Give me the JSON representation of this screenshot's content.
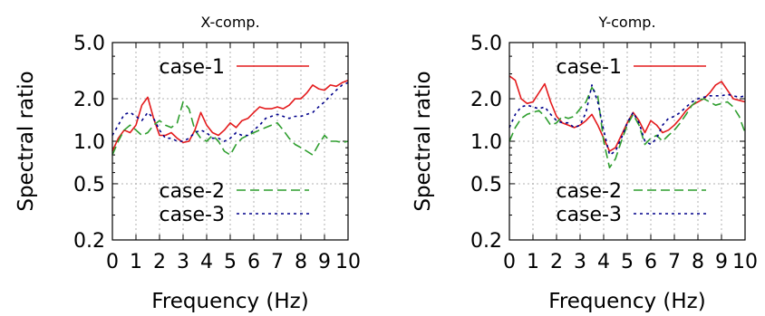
{
  "chart_data": [
    {
      "type": "line",
      "title": "X-comp.",
      "xlabel": "Frequency (Hz)",
      "ylabel": "Spectral ratio",
      "xlim": [
        0,
        10
      ],
      "ylim": [
        0.2,
        5.0
      ],
      "yscale": "log",
      "grid": true,
      "legend_placement": "top-right / bottom-right",
      "xticks": [
        0,
        1,
        2,
        3,
        4,
        5,
        6,
        7,
        8,
        9,
        10
      ],
      "xtick_labels": [
        "0",
        "1",
        "2",
        "3",
        "4",
        "5",
        "6",
        "7",
        "8",
        "9",
        "10"
      ],
      "yticks": [
        0.2,
        0.5,
        1.0,
        2.0,
        5.0
      ],
      "ytick_labels": [
        "0.2",
        "0.5",
        "1.0",
        "2.0",
        "5.0"
      ],
      "series": [
        {
          "name": "case-1",
          "color": "#e41a1c",
          "dash": "solid",
          "points": [
            [
              0,
              0.85
            ],
            [
              0.25,
              1.05
            ],
            [
              0.5,
              1.2
            ],
            [
              0.75,
              1.15
            ],
            [
              1.0,
              1.3
            ],
            [
              1.25,
              1.8
            ],
            [
              1.5,
              2.05
            ],
            [
              1.75,
              1.45
            ],
            [
              2.0,
              1.1
            ],
            [
              2.25,
              1.1
            ],
            [
              2.5,
              1.15
            ],
            [
              2.75,
              1.05
            ],
            [
              3.0,
              0.98
            ],
            [
              3.25,
              1.0
            ],
            [
              3.5,
              1.2
            ],
            [
              3.75,
              1.6
            ],
            [
              4.0,
              1.3
            ],
            [
              4.25,
              1.15
            ],
            [
              4.5,
              1.1
            ],
            [
              4.75,
              1.2
            ],
            [
              5.0,
              1.35
            ],
            [
              5.25,
              1.25
            ],
            [
              5.5,
              1.4
            ],
            [
              5.75,
              1.45
            ],
            [
              6.0,
              1.6
            ],
            [
              6.25,
              1.75
            ],
            [
              6.5,
              1.7
            ],
            [
              6.75,
              1.7
            ],
            [
              7.0,
              1.75
            ],
            [
              7.25,
              1.7
            ],
            [
              7.5,
              1.8
            ],
            [
              7.75,
              2.0
            ],
            [
              8.0,
              2.0
            ],
            [
              8.25,
              2.2
            ],
            [
              8.5,
              2.5
            ],
            [
              8.75,
              2.35
            ],
            [
              9.0,
              2.3
            ],
            [
              9.25,
              2.5
            ],
            [
              9.5,
              2.45
            ],
            [
              9.75,
              2.6
            ],
            [
              10.0,
              2.7
            ]
          ]
        },
        {
          "name": "case-2",
          "color": "#2e9e2e",
          "dash": "dashed",
          "points": [
            [
              0,
              0.8
            ],
            [
              0.25,
              1.0
            ],
            [
              0.5,
              1.2
            ],
            [
              0.75,
              1.3
            ],
            [
              1.0,
              1.2
            ],
            [
              1.25,
              1.1
            ],
            [
              1.5,
              1.15
            ],
            [
              1.75,
              1.3
            ],
            [
              2.0,
              1.4
            ],
            [
              2.25,
              1.3
            ],
            [
              2.5,
              1.25
            ],
            [
              2.75,
              1.35
            ],
            [
              3.0,
              1.9
            ],
            [
              3.25,
              1.7
            ],
            [
              3.5,
              1.2
            ],
            [
              3.75,
              1.05
            ],
            [
              4.0,
              1.0
            ],
            [
              4.25,
              1.1
            ],
            [
              4.5,
              1.0
            ],
            [
              4.75,
              0.85
            ],
            [
              5.0,
              0.8
            ],
            [
              5.25,
              0.95
            ],
            [
              5.5,
              1.05
            ],
            [
              5.75,
              1.1
            ],
            [
              6.0,
              1.15
            ],
            [
              6.25,
              1.2
            ],
            [
              6.5,
              1.25
            ],
            [
              6.75,
              1.3
            ],
            [
              7.0,
              1.35
            ],
            [
              7.25,
              1.2
            ],
            [
              7.5,
              1.05
            ],
            [
              7.75,
              0.95
            ],
            [
              8.0,
              0.9
            ],
            [
              8.25,
              0.85
            ],
            [
              8.5,
              0.8
            ],
            [
              8.75,
              0.95
            ],
            [
              9.0,
              1.1
            ],
            [
              9.25,
              1.0
            ],
            [
              9.5,
              1.0
            ],
            [
              9.75,
              0.98
            ],
            [
              10.0,
              1.0
            ]
          ]
        },
        {
          "name": "case-3",
          "color": "#00008b",
          "dash": "dotted",
          "points": [
            [
              0,
              1.1
            ],
            [
              0.25,
              1.3
            ],
            [
              0.5,
              1.55
            ],
            [
              0.75,
              1.6
            ],
            [
              1.0,
              1.5
            ],
            [
              1.25,
              1.4
            ],
            [
              1.5,
              1.6
            ],
            [
              1.75,
              1.45
            ],
            [
              2.0,
              1.2
            ],
            [
              2.25,
              1.05
            ],
            [
              2.5,
              1.05
            ],
            [
              2.75,
              1.0
            ],
            [
              3.0,
              1.0
            ],
            [
              3.25,
              1.05
            ],
            [
              3.5,
              1.15
            ],
            [
              3.75,
              1.2
            ],
            [
              4.0,
              1.15
            ],
            [
              4.25,
              1.05
            ],
            [
              4.5,
              1.05
            ],
            [
              4.75,
              1.0
            ],
            [
              5.0,
              1.05
            ],
            [
              5.25,
              1.15
            ],
            [
              5.5,
              1.1
            ],
            [
              5.75,
              1.1
            ],
            [
              6.0,
              1.2
            ],
            [
              6.25,
              1.3
            ],
            [
              6.5,
              1.45
            ],
            [
              6.75,
              1.5
            ],
            [
              7.0,
              1.55
            ],
            [
              7.25,
              1.5
            ],
            [
              7.5,
              1.45
            ],
            [
              7.75,
              1.5
            ],
            [
              8.0,
              1.5
            ],
            [
              8.25,
              1.55
            ],
            [
              8.5,
              1.6
            ],
            [
              8.75,
              1.75
            ],
            [
              9.0,
              1.9
            ],
            [
              9.25,
              2.1
            ],
            [
              9.5,
              2.3
            ],
            [
              9.75,
              2.5
            ],
            [
              10.0,
              2.6
            ]
          ]
        }
      ]
    },
    {
      "type": "line",
      "title": "Y-comp.",
      "xlabel": "Frequency (Hz)",
      "ylabel": "Spectral ratio",
      "xlim": [
        0,
        10
      ],
      "ylim": [
        0.2,
        5.0
      ],
      "yscale": "log",
      "grid": true,
      "legend_placement": "top-right / bottom-right",
      "xticks": [
        0,
        1,
        2,
        3,
        4,
        5,
        6,
        7,
        8,
        9,
        10
      ],
      "xtick_labels": [
        "0",
        "1",
        "2",
        "3",
        "4",
        "5",
        "6",
        "7",
        "8",
        "9",
        "10"
      ],
      "yticks": [
        0.2,
        0.5,
        1.0,
        2.0,
        5.0
      ],
      "ytick_labels": [
        "0.2",
        "0.5",
        "1.0",
        "2.0",
        "5.0"
      ],
      "series": [
        {
          "name": "case-1",
          "color": "#e41a1c",
          "dash": "solid",
          "points": [
            [
              0,
              2.9
            ],
            [
              0.25,
              2.7
            ],
            [
              0.5,
              2.0
            ],
            [
              0.75,
              1.85
            ],
            [
              1.0,
              1.9
            ],
            [
              1.25,
              2.2
            ],
            [
              1.5,
              2.55
            ],
            [
              1.75,
              1.9
            ],
            [
              2.0,
              1.5
            ],
            [
              2.25,
              1.35
            ],
            [
              2.5,
              1.3
            ],
            [
              2.75,
              1.25
            ],
            [
              3.0,
              1.3
            ],
            [
              3.25,
              1.4
            ],
            [
              3.5,
              1.55
            ],
            [
              3.75,
              1.3
            ],
            [
              4.0,
              1.05
            ],
            [
              4.25,
              0.85
            ],
            [
              4.5,
              0.9
            ],
            [
              4.75,
              1.1
            ],
            [
              5.0,
              1.35
            ],
            [
              5.25,
              1.6
            ],
            [
              5.5,
              1.4
            ],
            [
              5.75,
              1.15
            ],
            [
              6.0,
              1.4
            ],
            [
              6.25,
              1.3
            ],
            [
              6.5,
              1.15
            ],
            [
              6.75,
              1.2
            ],
            [
              7.0,
              1.3
            ],
            [
              7.25,
              1.45
            ],
            [
              7.5,
              1.65
            ],
            [
              7.75,
              1.8
            ],
            [
              8.0,
              1.9
            ],
            [
              8.25,
              2.0
            ],
            [
              8.5,
              2.2
            ],
            [
              8.75,
              2.5
            ],
            [
              9.0,
              2.65
            ],
            [
              9.25,
              2.3
            ],
            [
              9.5,
              2.0
            ],
            [
              9.75,
              1.95
            ],
            [
              10.0,
              1.9
            ]
          ]
        },
        {
          "name": "case-2",
          "color": "#2e9e2e",
          "dash": "dashed",
          "points": [
            [
              0,
              1.0
            ],
            [
              0.25,
              1.25
            ],
            [
              0.5,
              1.45
            ],
            [
              0.75,
              1.55
            ],
            [
              1.0,
              1.6
            ],
            [
              1.25,
              1.65
            ],
            [
              1.5,
              1.5
            ],
            [
              1.75,
              1.3
            ],
            [
              2.0,
              1.35
            ],
            [
              2.25,
              1.5
            ],
            [
              2.5,
              1.45
            ],
            [
              2.75,
              1.5
            ],
            [
              3.0,
              1.7
            ],
            [
              3.25,
              1.9
            ],
            [
              3.5,
              2.4
            ],
            [
              3.75,
              2.1
            ],
            [
              4.0,
              1.0
            ],
            [
              4.25,
              0.65
            ],
            [
              4.5,
              0.75
            ],
            [
              4.75,
              1.0
            ],
            [
              5.0,
              1.3
            ],
            [
              5.25,
              1.55
            ],
            [
              5.5,
              1.3
            ],
            [
              5.75,
              0.95
            ],
            [
              6.0,
              1.05
            ],
            [
              6.25,
              1.1
            ],
            [
              6.5,
              1.0
            ],
            [
              6.75,
              1.1
            ],
            [
              7.0,
              1.2
            ],
            [
              7.25,
              1.35
            ],
            [
              7.5,
              1.55
            ],
            [
              7.75,
              1.8
            ],
            [
              8.0,
              1.95
            ],
            [
              8.25,
              2.0
            ],
            [
              8.5,
              1.9
            ],
            [
              8.75,
              1.8
            ],
            [
              9.0,
              1.85
            ],
            [
              9.25,
              1.9
            ],
            [
              9.5,
              1.75
            ],
            [
              9.75,
              1.5
            ],
            [
              10.0,
              1.15
            ]
          ]
        },
        {
          "name": "case-3",
          "color": "#00008b",
          "dash": "dotted",
          "points": [
            [
              0,
              1.25
            ],
            [
              0.25,
              1.55
            ],
            [
              0.5,
              1.75
            ],
            [
              0.75,
              1.8
            ],
            [
              1.0,
              1.75
            ],
            [
              1.25,
              1.7
            ],
            [
              1.5,
              1.75
            ],
            [
              1.75,
              1.55
            ],
            [
              2.0,
              1.4
            ],
            [
              2.25,
              1.35
            ],
            [
              2.5,
              1.35
            ],
            [
              2.75,
              1.25
            ],
            [
              3.0,
              1.3
            ],
            [
              3.25,
              1.6
            ],
            [
              3.5,
              2.5
            ],
            [
              3.75,
              1.9
            ],
            [
              4.0,
              1.2
            ],
            [
              4.25,
              0.8
            ],
            [
              4.5,
              0.85
            ],
            [
              4.75,
              1.05
            ],
            [
              5.0,
              1.35
            ],
            [
              5.25,
              1.6
            ],
            [
              5.5,
              1.35
            ],
            [
              5.75,
              1.0
            ],
            [
              6.0,
              0.95
            ],
            [
              6.25,
              1.05
            ],
            [
              6.5,
              1.3
            ],
            [
              6.75,
              1.45
            ],
            [
              7.0,
              1.5
            ],
            [
              7.25,
              1.6
            ],
            [
              7.5,
              1.75
            ],
            [
              7.75,
              1.9
            ],
            [
              8.0,
              2.0
            ],
            [
              8.25,
              2.05
            ],
            [
              8.5,
              2.1
            ],
            [
              8.75,
              2.1
            ],
            [
              9.0,
              2.1
            ],
            [
              9.25,
              2.15
            ],
            [
              9.5,
              2.1
            ],
            [
              9.75,
              2.05
            ],
            [
              10.0,
              2.1
            ]
          ]
        }
      ]
    }
  ]
}
